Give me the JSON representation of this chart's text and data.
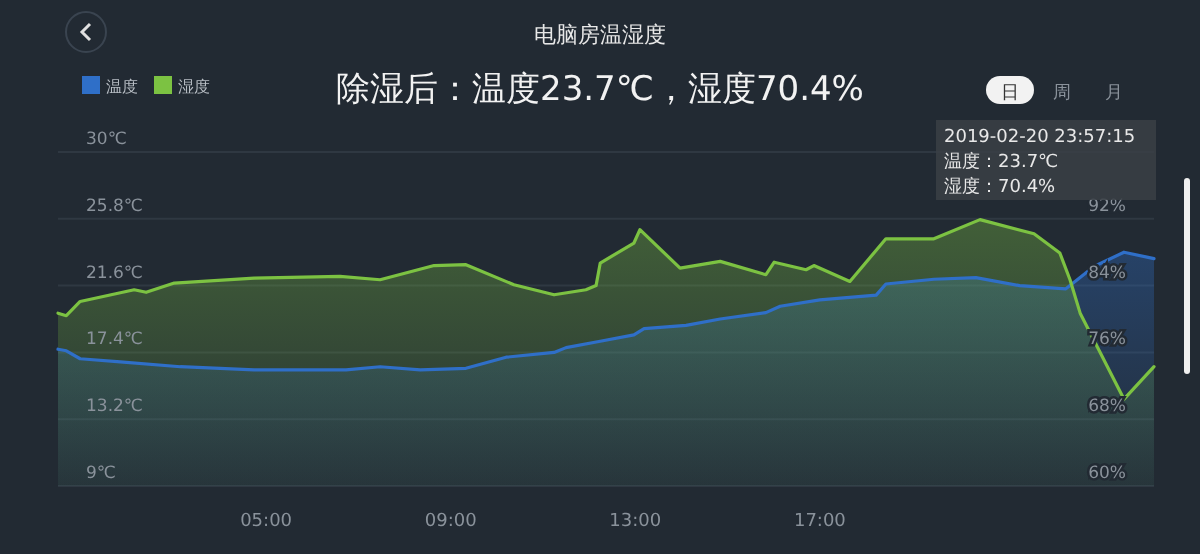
{
  "chart_data": {
    "type": "area",
    "title": "电脑房温湿度",
    "subtitle": "除湿后：温度23.7℃，湿度70.4%",
    "annotations": [
      "日",
      "周",
      "月",
      "2019-02-20 23:57:15",
      "温度：23.7℃",
      "湿度：70.4%"
    ],
    "xlim": [
      0.49,
      24.24
    ],
    "xticks": [
      {
        "value": 5,
        "label": "05:00"
      },
      {
        "value": 9,
        "label": "09:00"
      },
      {
        "value": 13,
        "label": "13:00"
      },
      {
        "value": 17,
        "label": "17:00"
      }
    ],
    "ylim": [
      9,
      30
    ],
    "yticks": [
      {
        "value": 9,
        "label": "9℃"
      },
      {
        "value": 13.2,
        "label": "13.2℃"
      },
      {
        "value": 17.4,
        "label": "17.4℃"
      },
      {
        "value": 21.6,
        "label": "21.6℃"
      },
      {
        "value": 25.8,
        "label": "25.8℃"
      },
      {
        "value": 30,
        "label": "30℃"
      }
    ],
    "y2lim": [
      60,
      100
    ],
    "y2ticks": [
      {
        "value": 60,
        "label": "60%"
      },
      {
        "value": 68,
        "label": "68%"
      },
      {
        "value": 76,
        "label": "76%"
      },
      {
        "value": 84,
        "label": "84%"
      },
      {
        "value": 92,
        "label": "92%"
      }
    ],
    "grid": "y",
    "legend": "top left",
    "series": [
      {
        "name": "温度",
        "color": "#2f6fc8",
        "axis": "y",
        "x": [
          0.49,
          0.67,
          0.97,
          1.84,
          3.14,
          4.74,
          6.73,
          7.47,
          8.34,
          9.33,
          10.2,
          11.24,
          11.5,
          12.24,
          12.97,
          13.19,
          14.1,
          14.84,
          15.83,
          16.14,
          17.0,
          18.22,
          18.43,
          19.47,
          20.38,
          21.33,
          22.33,
          22.94,
          23.59,
          24.24
        ],
        "values": [
          17.6,
          17.5,
          17.0,
          16.8,
          16.5,
          16.3,
          16.3,
          16.5,
          16.3,
          16.4,
          17.1,
          17.4,
          17.7,
          18.1,
          18.5,
          18.9,
          19.1,
          19.5,
          19.9,
          20.3,
          20.7,
          21.0,
          21.7,
          22.0,
          22.1,
          21.6,
          21.4,
          22.8,
          23.7,
          23.3
        ]
      },
      {
        "name": "湿度",
        "color": "#7cc242",
        "axis": "y2",
        "x": [
          0.49,
          0.67,
          0.97,
          2.14,
          2.4,
          3.01,
          4.74,
          6.6,
          7.47,
          8.64,
          9.33,
          10.37,
          11.24,
          11.93,
          12.15,
          12.24,
          12.97,
          13.1,
          13.97,
          14.84,
          15.83,
          16.01,
          16.7,
          16.87,
          17.65,
          18.43,
          19.47,
          20.47,
          21.64,
          22.2,
          22.42,
          22.64,
          23.59,
          24.24
        ],
        "values": [
          80.7,
          80.4,
          82.1,
          83.5,
          83.2,
          84.3,
          84.9,
          85.1,
          84.7,
          86.4,
          86.5,
          84.1,
          82.9,
          83.5,
          84.0,
          86.7,
          89.1,
          90.7,
          86.1,
          86.9,
          85.3,
          86.8,
          85.9,
          86.4,
          84.5,
          89.6,
          89.6,
          91.9,
          90.2,
          87.9,
          84.7,
          80.7,
          70.4,
          74.3
        ]
      }
    ]
  }
}
